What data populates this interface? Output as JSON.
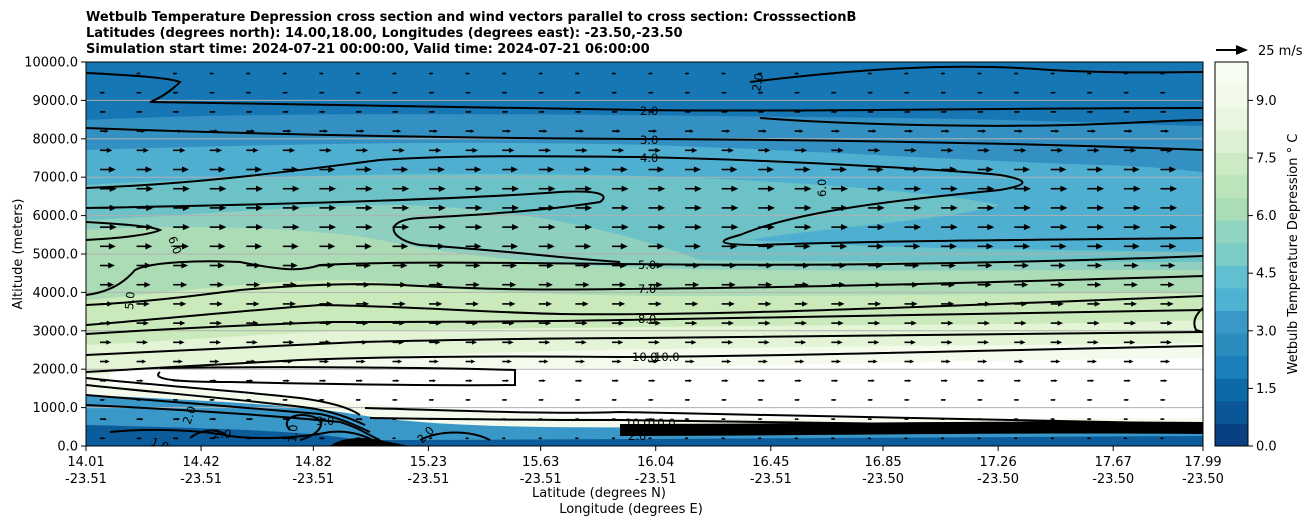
{
  "chart_data": {
    "type": "contour",
    "title_lines": [
      "Wetbulb Temperature Depression cross section and wind vectors parallel to cross section: CrosssectionB",
      "Latitudes (degrees north): 14.00,18.00, Longitudes (degrees east): -23.50,-23.50",
      "Simulation start time: 2024-07-21 00:00:00, Valid time: 2024-07-21 06:00:00"
    ],
    "ylabel": "Altitude (meters)",
    "xlabel_lines": [
      "Latitude (degrees N)",
      "Longitude (degrees E)"
    ],
    "ylim": [
      0,
      10000
    ],
    "y_ticks": [
      "0.0",
      "1000.0",
      "2000.0",
      "3000.0",
      "4000.0",
      "5000.0",
      "6000.0",
      "7000.0",
      "8000.0",
      "9000.0",
      "10000.0"
    ],
    "x_ticks": [
      {
        "lat": "14.01",
        "lon": "-23.51"
      },
      {
        "lat": "14.42",
        "lon": "-23.51"
      },
      {
        "lat": "14.82",
        "lon": "-23.51"
      },
      {
        "lat": "15.23",
        "lon": "-23.51"
      },
      {
        "lat": "15.63",
        "lon": "-23.51"
      },
      {
        "lat": "16.04",
        "lon": "-23.51"
      },
      {
        "lat": "16.45",
        "lon": "-23.51"
      },
      {
        "lat": "16.85",
        "lon": "-23.50"
      },
      {
        "lat": "17.26",
        "lon": "-23.50"
      },
      {
        "lat": "17.67",
        "lon": "-23.50"
      },
      {
        "lat": "17.99",
        "lon": "-23.50"
      }
    ],
    "x_range_lat": [
      14.01,
      17.99
    ],
    "grid": "horizontal",
    "colorbar": {
      "label": "Wetbulb Temperature Depression $^\\circ$C",
      "label_display": "Wetbulb Temperature Depression ° C",
      "range": [
        0,
        10
      ],
      "ticks": [
        "0.0",
        "1.5",
        "3.0",
        "4.5",
        "6.0",
        "7.5",
        "9.0"
      ],
      "colormap": "GnBu_r"
    },
    "quiver_key": {
      "label": "25 m/s",
      "value": 25
    },
    "contour_levels_labeled": [
      "2.0",
      "3.0",
      "4.0",
      "5.0",
      "7.0",
      "8.0",
      "10.0",
      "10.0",
      "6.0",
      "6.0",
      "5.0",
      "3.0",
      "2.0",
      "1.0",
      "1.0",
      "2.0",
      "2.0",
      "10.0",
      "10.0",
      "2.0",
      "2.0"
    ],
    "wind_profile": {
      "altitudes": [
        9700,
        9200,
        8700,
        8200,
        7700,
        7200,
        6700,
        6200,
        5700,
        5200,
        4700,
        4200,
        3700,
        3200,
        2700,
        2200,
        1700,
        1200,
        700,
        200
      ],
      "speeds_m_s": [
        5,
        6,
        7,
        10,
        14,
        18,
        19,
        19,
        19,
        18,
        17,
        16,
        15,
        14,
        13,
        11,
        8,
        6,
        5,
        4
      ]
    }
  }
}
